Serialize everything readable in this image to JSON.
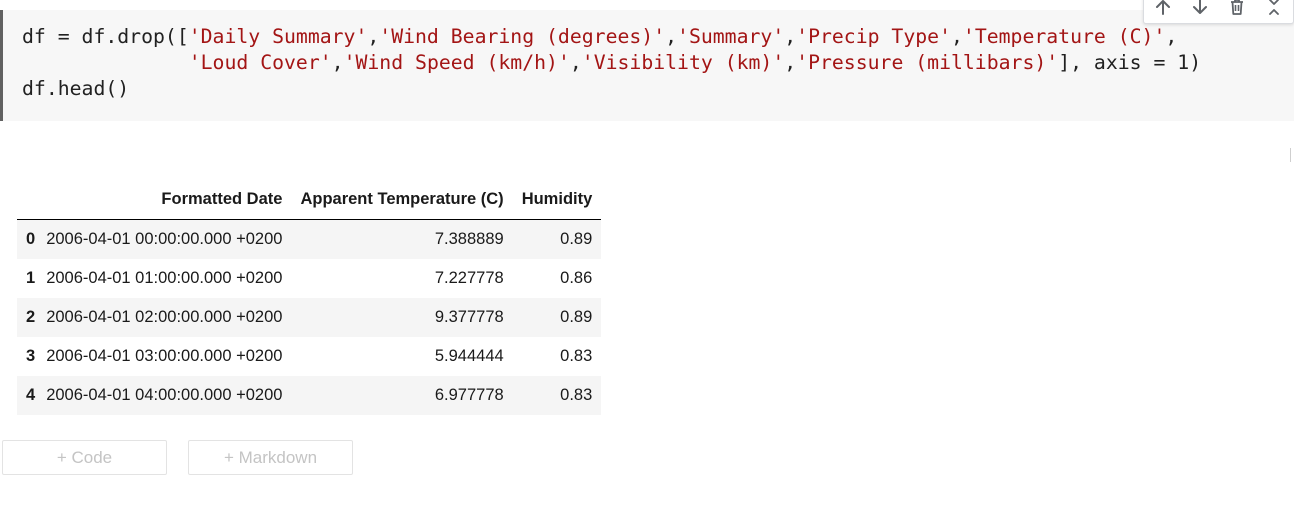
{
  "toolbar": {
    "icons": [
      "arrow-up-icon",
      "arrow-down-icon",
      "trash-icon",
      "collapse-icon"
    ]
  },
  "code_cell": {
    "lines": [
      [
        {
          "t": "plain",
          "v": "df = df.drop(["
        },
        {
          "t": "str",
          "v": "'Daily Summary'"
        },
        {
          "t": "plain",
          "v": ","
        },
        {
          "t": "str",
          "v": "'Wind Bearing (degrees)'"
        },
        {
          "t": "plain",
          "v": ","
        },
        {
          "t": "str",
          "v": "'Summary'"
        },
        {
          "t": "plain",
          "v": ","
        },
        {
          "t": "str",
          "v": "'Precip Type'"
        },
        {
          "t": "plain",
          "v": ","
        },
        {
          "t": "str",
          "v": "'Temperature (C)'"
        },
        {
          "t": "plain",
          "v": ","
        }
      ],
      [
        {
          "t": "plain",
          "v": "              "
        },
        {
          "t": "str",
          "v": "'Loud Cover'"
        },
        {
          "t": "plain",
          "v": ","
        },
        {
          "t": "str",
          "v": "'Wind Speed (km/h)'"
        },
        {
          "t": "plain",
          "v": ","
        },
        {
          "t": "str",
          "v": "'Visibility (km)'"
        },
        {
          "t": "plain",
          "v": ","
        },
        {
          "t": "str",
          "v": "'Pressure (millibars)'"
        },
        {
          "t": "plain",
          "v": "], axis = 1)"
        }
      ],
      [
        {
          "t": "plain",
          "v": "df.head()"
        }
      ]
    ]
  },
  "output_table": {
    "columns": [
      "",
      "Formatted Date",
      "Apparent Temperature (C)",
      "Humidity"
    ],
    "rows": [
      {
        "index": "0",
        "date": "2006-04-01 00:00:00.000 +0200",
        "apparent_temp": "7.388889",
        "humidity": "0.89"
      },
      {
        "index": "1",
        "date": "2006-04-01 01:00:00.000 +0200",
        "apparent_temp": "7.227778",
        "humidity": "0.86"
      },
      {
        "index": "2",
        "date": "2006-04-01 02:00:00.000 +0200",
        "apparent_temp": "9.377778",
        "humidity": "0.89"
      },
      {
        "index": "3",
        "date": "2006-04-01 03:00:00.000 +0200",
        "apparent_temp": "5.944444",
        "humidity": "0.83"
      },
      {
        "index": "4",
        "date": "2006-04-01 04:00:00.000 +0200",
        "apparent_temp": "6.977778",
        "humidity": "0.83"
      }
    ]
  },
  "add_cell": {
    "code_label": "+ Code",
    "markdown_label": "+ Markdown"
  },
  "colors": {
    "string": "#a31515",
    "code_text": "#212121",
    "cell_background": "#f7f7f7",
    "cell_border": "#616161"
  }
}
